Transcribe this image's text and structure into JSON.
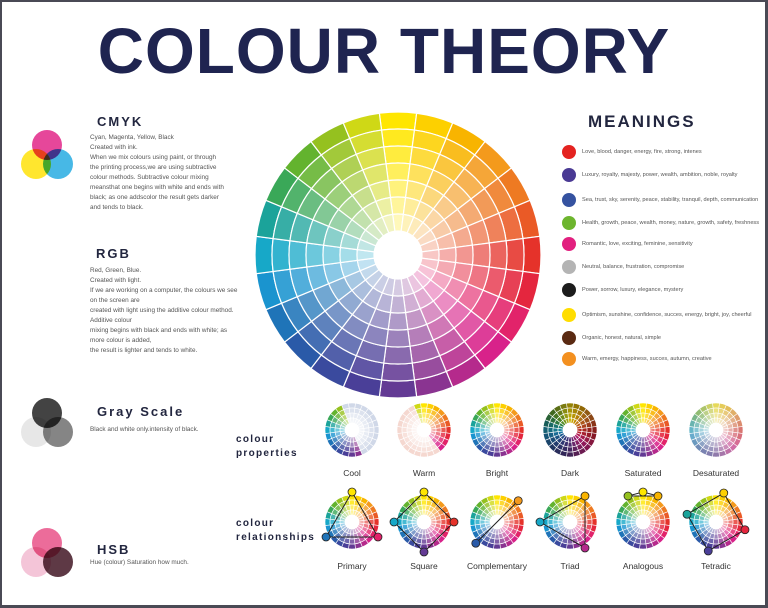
{
  "title": "COLOUR THEORY",
  "models": [
    {
      "heading": "CMYK",
      "text": [
        "Cyan, Magenta, Yellow, Black",
        "Created with ink.",
        "When we mix colours using paint, or through",
        "the printing process,we are using subtractive",
        "colour methods. Subtractive colour mixing",
        "meansthat one begins with white and ends with",
        "black; as one addscolor the result gets darker",
        "and tends to black."
      ],
      "circles": [
        "#e01e84",
        "#ffe000",
        "#1ea8e0"
      ]
    },
    {
      "heading": "RGB",
      "text": [
        "Red, Green, Blue.",
        "Created with light.",
        "If we are working on a computer, the colours we see",
        "on the screen are",
        "created with light using the additive colour method.",
        "Additive colour",
        "mixing begins with black and ends with white; as",
        "more colour is added,",
        "the result is lighter and tends to white."
      ],
      "circles": [
        "#e42320",
        "#5fb030",
        "#24489a"
      ]
    },
    {
      "heading": "Gray Scale",
      "text": [
        "Black and white only.intensity of black."
      ],
      "circles": [
        "#1a1a1a",
        "#e2e2e2",
        "#6a6a6a"
      ]
    },
    {
      "heading": "HSB",
      "text": [
        "Hue (colour) Saturation how much."
      ],
      "circles": [
        "#e84c84",
        "#f2b8cf",
        "#3a0e1c"
      ]
    }
  ],
  "meanings": {
    "heading": "MEANINGS",
    "items": [
      {
        "color": "#e42320",
        "text": "Love, blood, danger, energy, fire, strong, intenes"
      },
      {
        "color": "#4a3a94",
        "text": "Luxury, royalty, majesty, power, wealth, ambition, noble, royalty"
      },
      {
        "color": "#3552a0",
        "text": "Sea, trust, sky, serenity, peace, stability, tranquil, depth, communication"
      },
      {
        "color": "#6db52e",
        "text": "Health, growth, peace, wealth, money, nature, growth, safety, freshness"
      },
      {
        "color": "#e2207f",
        "text": "Romantic, love, exciting, feminine, sensitivity"
      },
      {
        "color": "#b4b4b4",
        "text": "Neutral, balance, frustration, compromise"
      },
      {
        "color": "#1c1c1c",
        "text": "Power, sorrow, luxury, elegance, mystery"
      },
      {
        "color": "#ffdd00",
        "text": "Optimism, sunshine, confidence, succes, energy, bright, joy, cheerful"
      },
      {
        "color": "#5a2a12",
        "text": "Organic, honest, natural, simple"
      },
      {
        "color": "#f39020",
        "text": "Warm, emergy, happiness, succes, autumn, creative"
      }
    ]
  },
  "properties": {
    "heading": [
      "colour",
      "properties"
    ],
    "items": [
      "Cool",
      "Warm",
      "Bright",
      "Dark",
      "Saturated",
      "Desaturated"
    ]
  },
  "relationships": {
    "heading": [
      "colour",
      "relationships"
    ],
    "items": [
      "Primary",
      "Square",
      "Complementary",
      "Triad",
      "Analogous",
      "Tetradic"
    ]
  },
  "colors": {
    "title": "#1f2450",
    "wheel": [
      "#ffe600",
      "#fdd000",
      "#f8b400",
      "#f49a1c",
      "#ee7a22",
      "#ea5a26",
      "#e5322a",
      "#e4263e",
      "#e2236a",
      "#d8228a",
      "#b52a8c",
      "#8a3491",
      "#633a94",
      "#4a3f98",
      "#3a4a9e",
      "#2a5aa8",
      "#1f74b8",
      "#1a94cf",
      "#17a8c8",
      "#1ba39a",
      "#3aa858",
      "#63b32e",
      "#95c11f",
      "#cfd816"
    ]
  }
}
